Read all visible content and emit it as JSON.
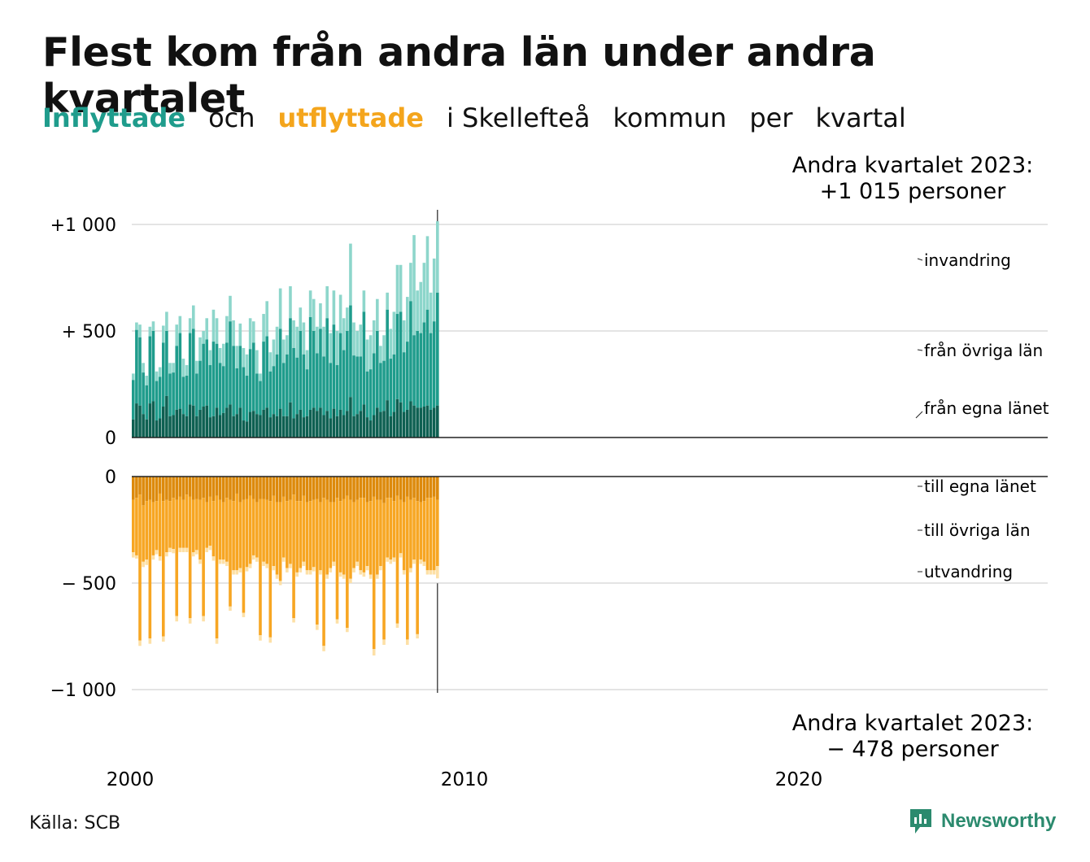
{
  "title": "Flest kom från andra län under andra kvartalet",
  "subtitle": {
    "part1": "Inflyttade",
    "part2": "och",
    "part3": "utflyttade",
    "part4": "i Skellefteå",
    "part5": "kommun",
    "part6": "per",
    "part7": "kvartal"
  },
  "colors": {
    "in_own": "#0e6052",
    "in_other": "#1f9c8c",
    "in_immig": "#8dd6cb",
    "out_own": "#dd8a0c",
    "out_other": "#f7a623",
    "out_emig": "#fde0a6"
  },
  "annotations": {
    "top_line1": "Andra kvartalet 2023:",
    "top_line2": "+1 015 personer",
    "bottom_line1": "Andra kvartalet 2023:",
    "bottom_line2": "−  478 personer"
  },
  "source": "Källa: SCB",
  "logo": "Newsworthy",
  "chart_data": {
    "type": "bar",
    "stacked": true,
    "x_start": "2000 Q1",
    "x_end": "2023 Q2",
    "x_ticks": [
      "2000",
      "2010",
      "2020"
    ],
    "y_ticks_top": [
      "+1 000",
      "+  500",
      "0"
    ],
    "y_ticks_bottom": [
      "0",
      "−  500",
      "−1 000"
    ],
    "ylim_top": [
      0,
      1015
    ],
    "ylim_bottom": [
      -1000,
      0
    ],
    "grid": true,
    "labels_in": [
      "invandring",
      "från övriga län",
      "från egna länet"
    ],
    "labels_out": [
      "till egna länet",
      "till övriga län",
      "utvandring"
    ],
    "inflyttade_totals": [
      300,
      540,
      530,
      350,
      290,
      520,
      545,
      310,
      330,
      525,
      590,
      350,
      350,
      530,
      570,
      370,
      340,
      560,
      620,
      360,
      470,
      500,
      560,
      410,
      600,
      560,
      420,
      440,
      570,
      665,
      550,
      430,
      535,
      420,
      390,
      560,
      545,
      410,
      300,
      580,
      640,
      400,
      460,
      520,
      700,
      460,
      480,
      710,
      550,
      520,
      610,
      540,
      410,
      690,
      650,
      520,
      630,
      520,
      710,
      490,
      690,
      500,
      670,
      560,
      610,
      910,
      540,
      500,
      530,
      690,
      460,
      480,
      550,
      650,
      430,
      480,
      680,
      510,
      590,
      810,
      810,
      550,
      660,
      820,
      950,
      690,
      730,
      820,
      945,
      680,
      840,
      1015
    ],
    "inflyttade_egna": [
      85,
      160,
      150,
      110,
      85,
      160,
      170,
      80,
      90,
      145,
      195,
      100,
      105,
      130,
      135,
      110,
      100,
      155,
      150,
      100,
      130,
      145,
      150,
      95,
      100,
      140,
      105,
      115,
      140,
      155,
      100,
      110,
      140,
      80,
      75,
      120,
      125,
      110,
      105,
      130,
      140,
      95,
      110,
      100,
      135,
      100,
      100,
      165,
      90,
      110,
      130,
      95,
      100,
      130,
      140,
      125,
      140,
      105,
      125,
      90,
      135,
      100,
      130,
      105,
      125,
      190,
      100,
      110,
      125,
      155,
      95,
      80,
      105,
      140,
      120,
      125,
      175,
      100,
      120,
      180,
      165,
      120,
      130,
      170,
      150,
      140,
      140,
      145,
      150,
      130,
      140,
      150
    ],
    "inflyttade_ovriga": [
      270,
      505,
      470,
      305,
      245,
      475,
      500,
      265,
      285,
      445,
      500,
      300,
      305,
      430,
      490,
      285,
      290,
      490,
      510,
      300,
      360,
      440,
      460,
      340,
      450,
      440,
      350,
      335,
      445,
      545,
      430,
      325,
      430,
      330,
      290,
      415,
      445,
      300,
      265,
      450,
      475,
      310,
      335,
      390,
      510,
      350,
      390,
      560,
      420,
      375,
      500,
      390,
      320,
      565,
      500,
      395,
      510,
      380,
      560,
      350,
      530,
      340,
      490,
      410,
      500,
      620,
      385,
      380,
      380,
      590,
      310,
      320,
      395,
      500,
      350,
      360,
      600,
      370,
      390,
      580,
      590,
      400,
      450,
      640,
      480,
      500,
      490,
      540,
      600,
      490,
      545,
      680
    ],
    "utflyttade_totals": [
      -380,
      -385,
      -795,
      -425,
      -415,
      -785,
      -390,
      -365,
      -395,
      -775,
      -375,
      -355,
      -360,
      -680,
      -355,
      -355,
      -355,
      -690,
      -375,
      -365,
      -410,
      -680,
      -355,
      -345,
      -395,
      -785,
      -410,
      -410,
      -420,
      -630,
      -460,
      -460,
      -450,
      -660,
      -445,
      -430,
      -390,
      -400,
      -770,
      -420,
      -430,
      -780,
      -440,
      -480,
      -510,
      -400,
      -450,
      -430,
      -685,
      -470,
      -450,
      -420,
      -460,
      -460,
      -445,
      -720,
      -460,
      -820,
      -480,
      -450,
      -420,
      -690,
      -470,
      -480,
      -730,
      -500,
      -450,
      -420,
      -460,
      -470,
      -440,
      -480,
      -840,
      -480,
      -440,
      -790,
      -400,
      -410,
      -400,
      -710,
      -380,
      -460,
      -790,
      -450,
      -410,
      -760,
      -410,
      -420,
      -460,
      -460,
      -460,
      -478
    ],
    "utflyttade_egna": [
      -110,
      -100,
      -85,
      -135,
      -115,
      -110,
      -120,
      -115,
      -80,
      -115,
      -110,
      -115,
      -100,
      -110,
      -95,
      -110,
      -85,
      -95,
      -110,
      -105,
      -110,
      -100,
      -120,
      -95,
      -115,
      -90,
      -110,
      -120,
      -100,
      -110,
      -115,
      -80,
      -120,
      -110,
      -105,
      -90,
      -105,
      -120,
      -105,
      -105,
      -110,
      -115,
      -90,
      -120,
      -120,
      -95,
      -115,
      -110,
      -85,
      -115,
      -115,
      -90,
      -120,
      -115,
      -110,
      -105,
      -120,
      -100,
      -110,
      -120,
      -120,
      -100,
      -115,
      -105,
      -90,
      -110,
      -120,
      -110,
      -100,
      -100,
      -120,
      -115,
      -95,
      -110,
      -110,
      -125,
      -100,
      -100,
      -115,
      -90,
      -110,
      -120,
      -95,
      -110,
      -100,
      -115,
      -120,
      -115,
      -100,
      -100,
      -95,
      -110
    ],
    "utflyttade_ovriga": [
      -355,
      -370,
      -770,
      -400,
      -390,
      -760,
      -370,
      -345,
      -375,
      -750,
      -355,
      -335,
      -340,
      -655,
      -335,
      -335,
      -335,
      -665,
      -355,
      -345,
      -390,
      -655,
      -335,
      -325,
      -375,
      -760,
      -390,
      -390,
      -400,
      -610,
      -440,
      -440,
      -430,
      -640,
      -425,
      -410,
      -370,
      -380,
      -745,
      -400,
      -410,
      -755,
      -420,
      -460,
      -490,
      -380,
      -430,
      -410,
      -665,
      -450,
      -430,
      -400,
      -440,
      -440,
      -425,
      -695,
      -440,
      -795,
      -460,
      -430,
      -400,
      -670,
      -450,
      -460,
      -710,
      -480,
      -430,
      -400,
      -440,
      -450,
      -420,
      -460,
      -810,
      -460,
      -420,
      -765,
      -380,
      -390,
      -380,
      -690,
      -360,
      -440,
      -765,
      -430,
      -390,
      -740,
      -390,
      -400,
      -440,
      -440,
      -440,
      -420
    ]
  }
}
